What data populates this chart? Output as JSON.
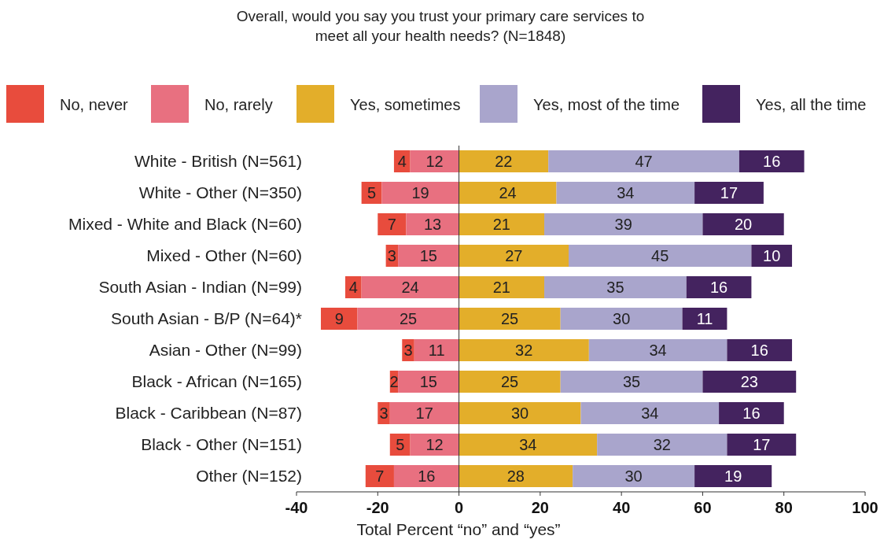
{
  "chart_data": {
    "type": "bar",
    "orientation": "horizontal",
    "title": "Overall, would you say you trust your primary care services to meet all your health needs? (N=1848)",
    "xlabel": "Total Percent “no” and “yes”",
    "categories": [
      "White - British (N=561)",
      "White - Other (N=350)",
      "Mixed - White and Black (N=60)",
      "Mixed - Other (N=60)",
      "South Asian - Indian (N=99)",
      "South Asian - B/P (N=64)*",
      "Asian - Other (N=99)",
      "Black - African (N=165)",
      "Black - Caribbean (N=87)",
      "Black - Other (N=151)",
      "Other (N=152)"
    ],
    "xlim": [
      -40,
      100
    ],
    "xticks": [
      -40,
      -20,
      0,
      20,
      40,
      60,
      80,
      100
    ],
    "legend": "top",
    "data_labels": true,
    "ref_lines": [
      {
        "axis": "x",
        "value": 0,
        "color": "#333333"
      }
    ],
    "series": [
      {
        "name": "No, never",
        "color": "#e84c3d",
        "values": [
          4,
          5,
          7,
          3,
          4,
          9,
          3,
          2,
          3,
          5,
          7
        ],
        "base": [
          -16,
          -24,
          -20,
          -18,
          -28,
          -34,
          -14,
          -17,
          -20,
          -17,
          -23
        ]
      },
      {
        "name": "No, rarely",
        "color": "#e87080",
        "values": [
          12,
          19,
          13,
          15,
          24,
          25,
          11,
          15,
          17,
          12,
          16
        ],
        "base": [
          -12,
          -19,
          -13,
          -15,
          -24,
          -25,
          -11,
          -15,
          -17,
          -12,
          -16
        ]
      },
      {
        "name": "Yes, sometimes",
        "color": "#e3ae2a",
        "values": [
          22,
          24,
          21,
          27,
          21,
          25,
          32,
          25,
          30,
          34,
          28
        ],
        "base": [
          0,
          0,
          0,
          0,
          0,
          0,
          0,
          0,
          0,
          0,
          0
        ]
      },
      {
        "name": "Yes, most of the time",
        "color": "#a9a5cc",
        "values": [
          47,
          34,
          39,
          45,
          35,
          30,
          34,
          35,
          34,
          32,
          30
        ],
        "base": [
          22,
          24,
          21,
          27,
          21,
          25,
          32,
          25,
          30,
          34,
          28
        ]
      },
      {
        "name": "Yes, all the time",
        "color": "#44235f",
        "values": [
          16,
          17,
          20,
          10,
          16,
          11,
          16,
          23,
          16,
          17,
          19
        ],
        "base": [
          69,
          58,
          60,
          72,
          56,
          55,
          66,
          60,
          64,
          66,
          58
        ]
      }
    ]
  }
}
